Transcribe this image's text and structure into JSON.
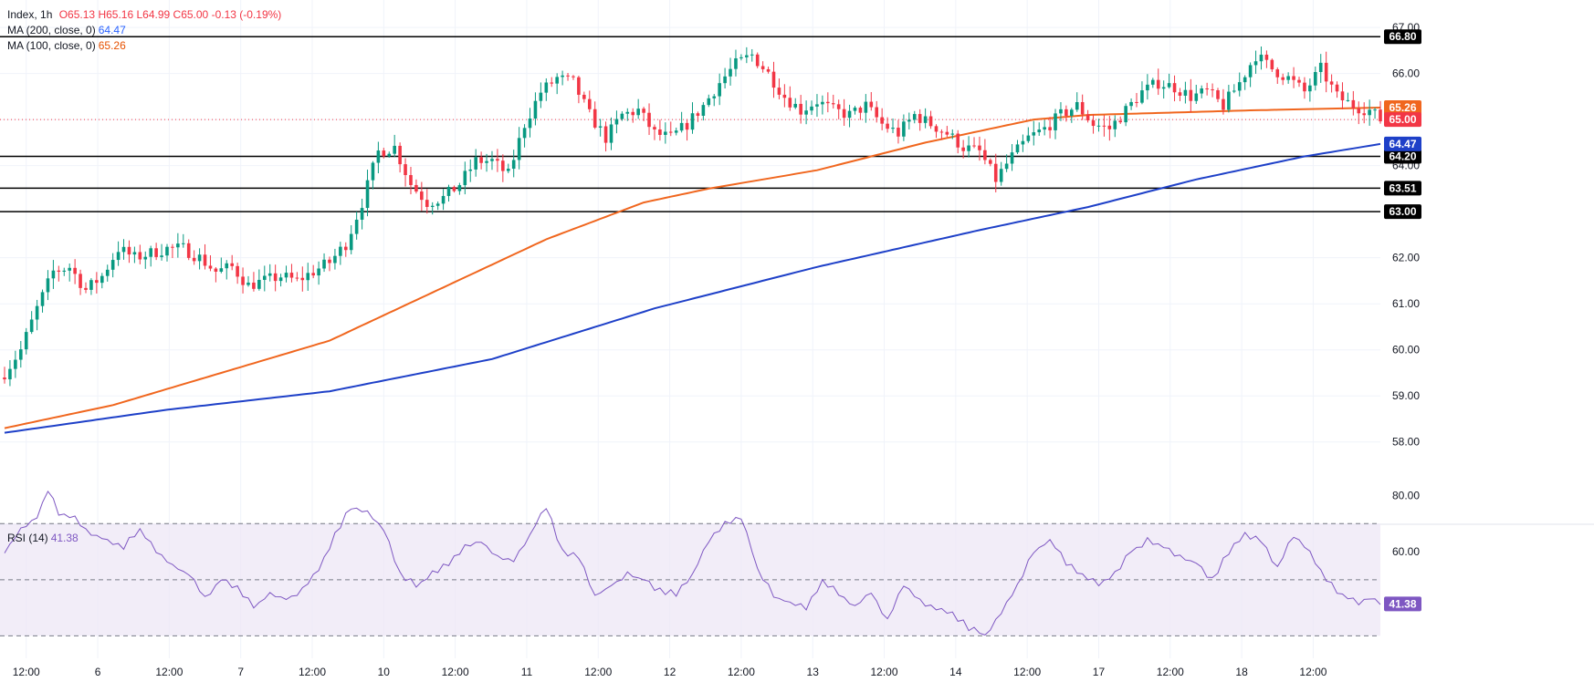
{
  "legend": {
    "symbol": "Index, 1h",
    "open": "O65.13",
    "high": "H65.16",
    "low": "L64.99",
    "close": "C65.00",
    "change": "-0.13 (-0.19%)",
    "ma200_label": "MA (200, close, 0)",
    "ma200_value": "64.47",
    "ma100_label": "MA (100, close, 0)",
    "ma100_value": "65.26",
    "rsi_label": "RSI (14)",
    "rsi_value": "41.38"
  },
  "colors": {
    "up": "#089981",
    "down": "#f23645",
    "ma100": "#f0661e",
    "ma200": "#1e40c8",
    "rsi": "#7e57c2",
    "level": "#000000",
    "last": "#f23645"
  },
  "chart_data": [
    {
      "type": "candlestick",
      "timeframe": "1h",
      "ylim": [
        57.5,
        67.2
      ],
      "y_ticks": [
        "58.00",
        "59.00",
        "60.00",
        "61.00",
        "62.00",
        "63.00",
        "64.00",
        "65.00",
        "66.00",
        "67.00"
      ],
      "x_ticks": [
        "12:00",
        "6",
        "12:00",
        "7",
        "12:00",
        "10",
        "12:00",
        "11",
        "12:00",
        "12",
        "12:00",
        "13",
        "12:00",
        "14",
        "12:00",
        "17",
        "12:00",
        "18",
        "12:00"
      ],
      "horizontal_levels": [
        "66.80",
        "64.20",
        "63.51",
        "63.00"
      ],
      "last_price": "65.00",
      "ma200_last": "64.47",
      "ma100_last": "65.26",
      "close_anchors": [
        [
          0,
          59.5
        ],
        [
          3,
          60.0
        ],
        [
          6,
          60.9
        ],
        [
          9,
          61.7
        ],
        [
          12,
          61.8
        ],
        [
          15,
          61.3
        ],
        [
          18,
          61.6
        ],
        [
          21,
          62.2
        ],
        [
          24,
          62.0
        ],
        [
          27,
          62.1
        ],
        [
          30,
          62.2
        ],
        [
          33,
          62.2
        ],
        [
          36,
          62.0
        ],
        [
          39,
          61.7
        ],
        [
          42,
          61.8
        ],
        [
          45,
          61.4
        ],
        [
          48,
          61.5
        ],
        [
          51,
          61.6
        ],
        [
          54,
          61.5
        ],
        [
          57,
          61.7
        ],
        [
          60,
          61.9
        ],
        [
          63,
          62.3
        ],
        [
          66,
          63.2
        ],
        [
          69,
          64.3
        ],
        [
          72,
          64.4
        ],
        [
          75,
          63.6
        ],
        [
          78,
          63.2
        ],
        [
          81,
          63.3
        ],
        [
          84,
          63.6
        ],
        [
          87,
          64.1
        ],
        [
          90,
          64.1
        ],
        [
          93,
          63.8
        ],
        [
          96,
          64.9
        ],
        [
          99,
          65.6
        ],
        [
          102,
          65.9
        ],
        [
          105,
          65.8
        ],
        [
          108,
          65.1
        ],
        [
          111,
          64.6
        ],
        [
          114,
          65.1
        ],
        [
          117,
          65.2
        ],
        [
          120,
          64.7
        ],
        [
          123,
          64.6
        ],
        [
          126,
          64.9
        ],
        [
          129,
          65.3
        ],
        [
          132,
          65.8
        ],
        [
          135,
          66.2
        ],
        [
          138,
          66.4
        ],
        [
          141,
          66.0
        ],
        [
          144,
          65.5
        ],
        [
          147,
          65.2
        ],
        [
          150,
          65.4
        ],
        [
          153,
          65.2
        ],
        [
          156,
          65.1
        ],
        [
          159,
          65.3
        ],
        [
          162,
          64.9
        ],
        [
          165,
          64.7
        ],
        [
          168,
          65.1
        ],
        [
          171,
          64.9
        ],
        [
          174,
          64.7
        ],
        [
          177,
          64.4
        ],
        [
          180,
          64.3
        ],
        [
          183,
          63.7
        ],
        [
          186,
          64.2
        ],
        [
          189,
          64.6
        ],
        [
          192,
          64.8
        ],
        [
          195,
          65.1
        ],
        [
          198,
          65.3
        ],
        [
          201,
          64.9
        ],
        [
          204,
          64.8
        ],
        [
          207,
          65.2
        ],
        [
          210,
          65.6
        ],
        [
          213,
          65.8
        ],
        [
          216,
          65.7
        ],
        [
          219,
          65.5
        ],
        [
          222,
          65.6
        ],
        [
          225,
          65.3
        ],
        [
          228,
          65.8
        ],
        [
          231,
          66.4
        ],
        [
          234,
          66.1
        ],
        [
          237,
          65.9
        ],
        [
          240,
          65.6
        ],
        [
          243,
          66.1
        ],
        [
          246,
          65.5
        ],
        [
          249,
          65.3
        ],
        [
          252,
          65.2
        ],
        [
          254,
          65.0
        ]
      ],
      "ma100_anchors": [
        [
          0,
          58.3
        ],
        [
          20,
          58.8
        ],
        [
          40,
          59.5
        ],
        [
          60,
          60.2
        ],
        [
          80,
          61.3
        ],
        [
          100,
          62.4
        ],
        [
          118,
          63.2
        ],
        [
          130,
          63.5
        ],
        [
          150,
          63.9
        ],
        [
          170,
          64.5
        ],
        [
          190,
          65.0
        ],
        [
          200,
          65.1
        ],
        [
          230,
          65.2
        ],
        [
          254,
          65.26
        ]
      ],
      "ma200_anchors": [
        [
          0,
          58.2
        ],
        [
          30,
          58.7
        ],
        [
          60,
          59.1
        ],
        [
          90,
          59.8
        ],
        [
          120,
          60.9
        ],
        [
          150,
          61.8
        ],
        [
          180,
          62.6
        ],
        [
          200,
          63.1
        ],
        [
          220,
          63.7
        ],
        [
          240,
          64.2
        ],
        [
          254,
          64.47
        ]
      ]
    },
    {
      "type": "line",
      "name": "RSI (14)",
      "ylim": [
        22,
        86
      ],
      "y_ticks": [
        "80.00",
        "60.00",
        "41.38"
      ],
      "bands": [
        30,
        50,
        70
      ],
      "last_value": "41.38",
      "anchors": [
        [
          0,
          60
        ],
        [
          3,
          68
        ],
        [
          6,
          72
        ],
        [
          8,
          82
        ],
        [
          10,
          74
        ],
        [
          13,
          72
        ],
        [
          16,
          66
        ],
        [
          19,
          64
        ],
        [
          22,
          62
        ],
        [
          25,
          68
        ],
        [
          28,
          60
        ],
        [
          31,
          55
        ],
        [
          34,
          52
        ],
        [
          37,
          44
        ],
        [
          40,
          50
        ],
        [
          43,
          47
        ],
        [
          46,
          40
        ],
        [
          49,
          45
        ],
        [
          52,
          43
        ],
        [
          55,
          46
        ],
        [
          58,
          54
        ],
        [
          61,
          66
        ],
        [
          64,
          76
        ],
        [
          67,
          74
        ],
        [
          70,
          68
        ],
        [
          73,
          52
        ],
        [
          76,
          48
        ],
        [
          79,
          52
        ],
        [
          82,
          56
        ],
        [
          85,
          62
        ],
        [
          88,
          64
        ],
        [
          91,
          58
        ],
        [
          94,
          57
        ],
        [
          97,
          66
        ],
        [
          100,
          76
        ],
        [
          103,
          60
        ],
        [
          106,
          58
        ],
        [
          109,
          44
        ],
        [
          112,
          48
        ],
        [
          115,
          52
        ],
        [
          118,
          50
        ],
        [
          121,
          46
        ],
        [
          124,
          45
        ],
        [
          127,
          52
        ],
        [
          130,
          64
        ],
        [
          133,
          70
        ],
        [
          136,
          72
        ],
        [
          139,
          54
        ],
        [
          142,
          44
        ],
        [
          145,
          42
        ],
        [
          148,
          40
        ],
        [
          151,
          50
        ],
        [
          154,
          45
        ],
        [
          157,
          40
        ],
        [
          160,
          46
        ],
        [
          163,
          35
        ],
        [
          166,
          48
        ],
        [
          169,
          42
        ],
        [
          172,
          40
        ],
        [
          175,
          38
        ],
        [
          178,
          33
        ],
        [
          181,
          30
        ],
        [
          184,
          38
        ],
        [
          187,
          48
        ],
        [
          190,
          60
        ],
        [
          193,
          64
        ],
        [
          196,
          56
        ],
        [
          199,
          52
        ],
        [
          202,
          48
        ],
        [
          205,
          52
        ],
        [
          208,
          60
        ],
        [
          211,
          64
        ],
        [
          214,
          62
        ],
        [
          217,
          58
        ],
        [
          220,
          56
        ],
        [
          223,
          50
        ],
        [
          226,
          60
        ],
        [
          229,
          66
        ],
        [
          232,
          64
        ],
        [
          235,
          54
        ],
        [
          238,
          66
        ],
        [
          241,
          60
        ],
        [
          244,
          50
        ],
        [
          247,
          44
        ],
        [
          250,
          42
        ],
        [
          252,
          44
        ],
        [
          254,
          41.4
        ]
      ]
    }
  ]
}
